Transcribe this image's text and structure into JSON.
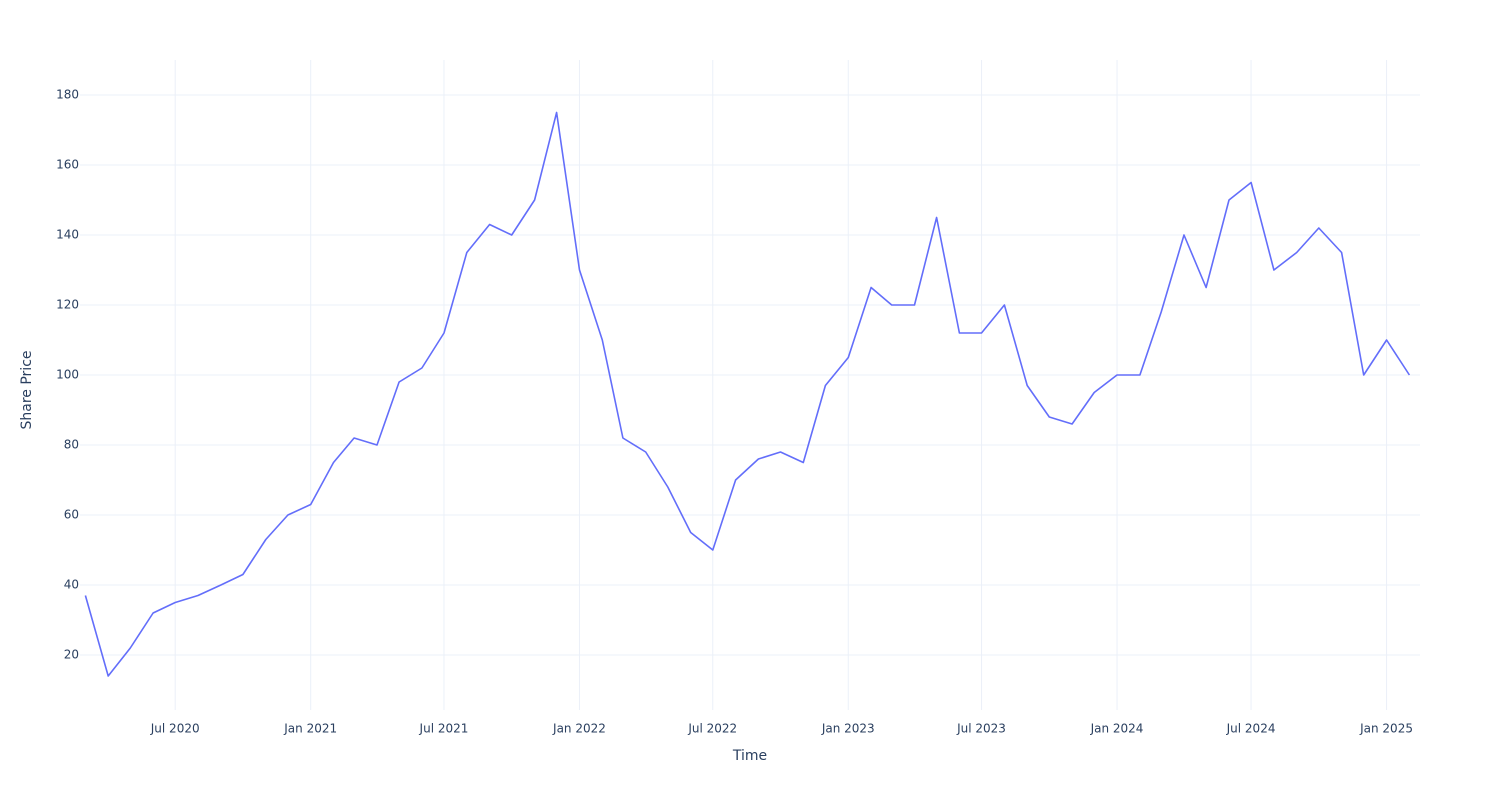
{
  "chart_data": {
    "type": "line",
    "x_label": "Time",
    "y_label": "Share Price",
    "x": [
      "2020-03",
      "2020-04",
      "2020-05",
      "2020-06",
      "2020-07",
      "2020-08",
      "2020-09",
      "2020-10",
      "2020-11",
      "2020-12",
      "2021-01",
      "2021-02",
      "2021-03",
      "2021-04",
      "2021-05",
      "2021-06",
      "2021-07",
      "2021-08",
      "2021-09",
      "2021-10",
      "2021-11",
      "2021-12",
      "2022-01",
      "2022-02",
      "2022-03",
      "2022-04",
      "2022-05",
      "2022-06",
      "2022-07",
      "2022-08",
      "2022-09",
      "2022-10",
      "2022-11",
      "2022-12",
      "2023-01",
      "2023-02",
      "2023-03",
      "2023-04",
      "2023-05",
      "2023-06",
      "2023-07",
      "2023-08",
      "2023-09",
      "2023-10",
      "2023-11",
      "2023-12",
      "2024-01",
      "2024-02",
      "2024-03",
      "2024-04",
      "2024-05",
      "2024-06",
      "2024-07",
      "2024-08",
      "2024-09",
      "2024-10",
      "2024-11",
      "2024-12",
      "2025-01",
      "2025-02"
    ],
    "series": [
      {
        "name": "Share Price",
        "color": "#636efa",
        "values": [
          37,
          14,
          22,
          32,
          35,
          37,
          40,
          43,
          53,
          60,
          63,
          75,
          82,
          80,
          98,
          102,
          112,
          135,
          143,
          140,
          150,
          175,
          130,
          110,
          82,
          78,
          68,
          55,
          50,
          70,
          76,
          78,
          75,
          97,
          105,
          125,
          120,
          120,
          145,
          112,
          112,
          120,
          97,
          88,
          86,
          95,
          100,
          100,
          118,
          140,
          125,
          150,
          155,
          130,
          135,
          142,
          135,
          100,
          110,
          100
        ]
      }
    ],
    "xlim": [
      "2020-02",
      "2025-03"
    ],
    "xticks": [
      {
        "value": "2020-07",
        "label": "Jul 2020"
      },
      {
        "value": "2021-01",
        "label": "Jan 2021"
      },
      {
        "value": "2021-07",
        "label": "Jul 2021"
      },
      {
        "value": "2022-01",
        "label": "Jan 2022"
      },
      {
        "value": "2022-07",
        "label": "Jul 2022"
      },
      {
        "value": "2023-01",
        "label": "Jan 2023"
      },
      {
        "value": "2023-07",
        "label": "Jul 2023"
      },
      {
        "value": "2024-01",
        "label": "Jan 2024"
      },
      {
        "value": "2024-07",
        "label": "Jul 2024"
      },
      {
        "value": "2025-01",
        "label": "Jan 2025"
      }
    ],
    "ylim": [
      4.3,
      190
    ],
    "yticks": [
      20,
      40,
      60,
      80,
      100,
      120,
      140,
      160,
      180
    ],
    "grid": true
  }
}
